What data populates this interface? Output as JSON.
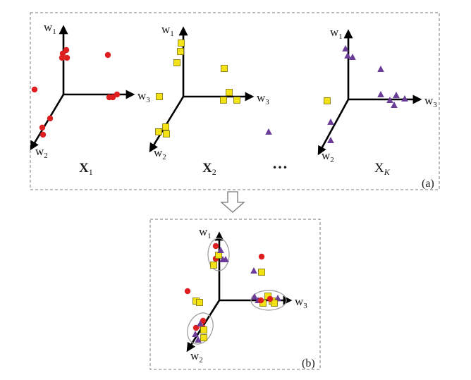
{
  "labels": {
    "axis_w1": "w",
    "axis_w2": "w",
    "axis_w3": "w",
    "sub_1": "1",
    "sub_2": "2",
    "sub_3": "3",
    "set_x1_main": "X",
    "set_x1_sub": "1",
    "set_x2_main": "X",
    "set_x2_sub": "2",
    "set_xk_main": "X",
    "set_xk_sub": "K",
    "ellipsis": "…",
    "panel_a": "(a)",
    "panel_b": "(b)"
  },
  "colors": {
    "red": "#dd1f1f",
    "yellow": "#f3e316",
    "yellow_stroke": "#7a6f00",
    "purple": "#6b3d99",
    "axis": "#000000",
    "frame": "#7a7a7a"
  },
  "markers": {
    "circle": "red-circle",
    "square": "yellow-square",
    "triangle": "purple-triangle"
  }
}
